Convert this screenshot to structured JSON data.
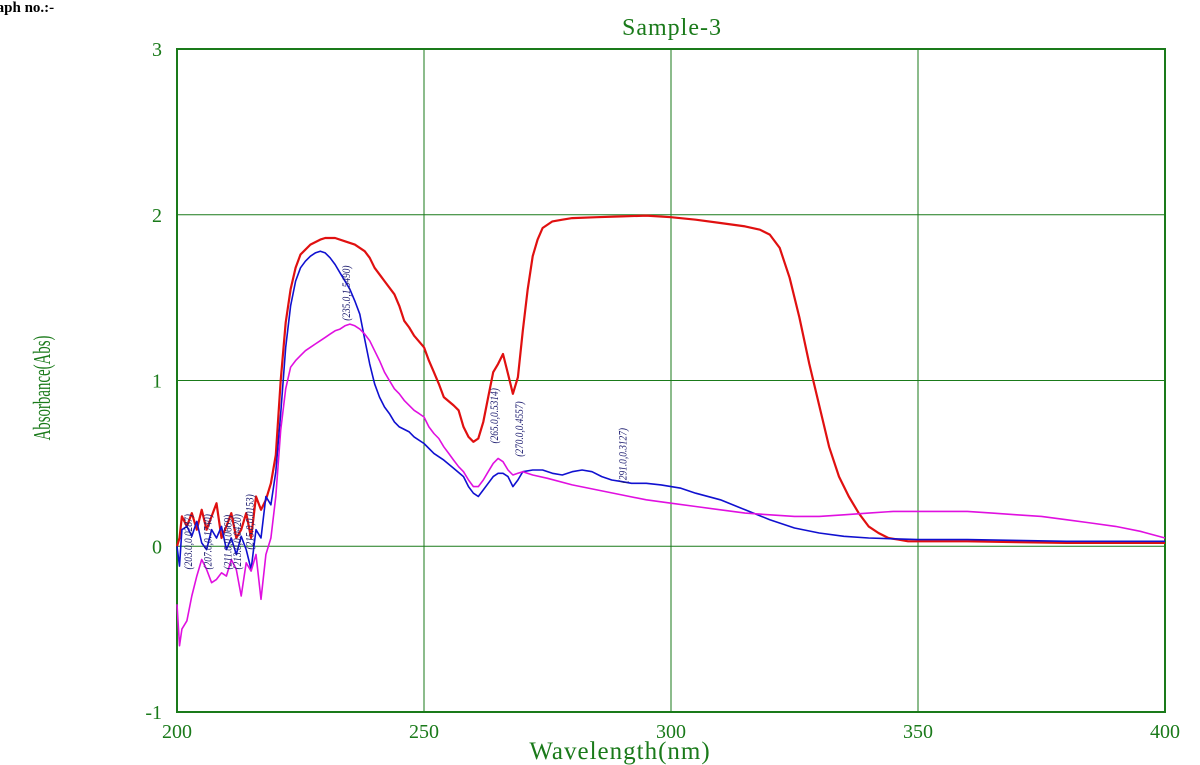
{
  "page": {
    "heading": "raph no.:-"
  },
  "chart_data": {
    "type": "line",
    "title": "Sample-3",
    "xlabel": "Wavelength(nm)",
    "ylabel": "Absorbance(Abs)",
    "xlim": [
      200,
      400
    ],
    "ylim": [
      -1,
      3
    ],
    "xticks": [
      200,
      250,
      300,
      350,
      400
    ],
    "yticks": [
      -1,
      0,
      1,
      2,
      3
    ],
    "xtick_labels": [
      "200",
      "250",
      "300",
      "350",
      "400"
    ],
    "ytick_labels": [
      "-1",
      "0",
      "1",
      "2",
      "3"
    ],
    "grid": true,
    "legend": "none",
    "colors": {
      "frame": "#1a7a1a",
      "grid": "#1a7a1a",
      "annotation": "#1a1a6e"
    },
    "series": [
      {
        "color": "#e01010",
        "points": [
          [
            200,
            0.0
          ],
          [
            200.5,
            0.05
          ],
          [
            201,
            0.18
          ],
          [
            202,
            0.12
          ],
          [
            203,
            0.2
          ],
          [
            204,
            0.1
          ],
          [
            205,
            0.22
          ],
          [
            206,
            0.1
          ],
          [
            207,
            0.18
          ],
          [
            208,
            0.26
          ],
          [
            209,
            0.05
          ],
          [
            210,
            0.12
          ],
          [
            211,
            0.2
          ],
          [
            212,
            0.05
          ],
          [
            213,
            0.1
          ],
          [
            214,
            0.2
          ],
          [
            215,
            0.05
          ],
          [
            216,
            0.3
          ],
          [
            217,
            0.22
          ],
          [
            218,
            0.28
          ],
          [
            219,
            0.38
          ],
          [
            220,
            0.55
          ],
          [
            221,
            1.0
          ],
          [
            222,
            1.35
          ],
          [
            223,
            1.55
          ],
          [
            224,
            1.68
          ],
          [
            225,
            1.76
          ],
          [
            227,
            1.82
          ],
          [
            229,
            1.85
          ],
          [
            230,
            1.86
          ],
          [
            232,
            1.86
          ],
          [
            234,
            1.84
          ],
          [
            236,
            1.82
          ],
          [
            238,
            1.78
          ],
          [
            239,
            1.74
          ],
          [
            240,
            1.68
          ],
          [
            242,
            1.6
          ],
          [
            244,
            1.52
          ],
          [
            245,
            1.45
          ],
          [
            246,
            1.36
          ],
          [
            247,
            1.32
          ],
          [
            248,
            1.27
          ],
          [
            250,
            1.2
          ],
          [
            251,
            1.12
          ],
          [
            252,
            1.05
          ],
          [
            253,
            0.98
          ],
          [
            254,
            0.9
          ],
          [
            256,
            0.85
          ],
          [
            257,
            0.82
          ],
          [
            258,
            0.72
          ],
          [
            259,
            0.66
          ],
          [
            260,
            0.63
          ],
          [
            261,
            0.65
          ],
          [
            262,
            0.75
          ],
          [
            263,
            0.9
          ],
          [
            264,
            1.05
          ],
          [
            265,
            1.1
          ],
          [
            266,
            1.16
          ],
          [
            267,
            1.04
          ],
          [
            268,
            0.92
          ],
          [
            269,
            1.02
          ],
          [
            270,
            1.3
          ],
          [
            271,
            1.55
          ],
          [
            272,
            1.75
          ],
          [
            273,
            1.85
          ],
          [
            274,
            1.92
          ],
          [
            276,
            1.96
          ],
          [
            278,
            1.97
          ],
          [
            280,
            1.98
          ],
          [
            285,
            1.985
          ],
          [
            290,
            1.99
          ],
          [
            295,
            1.995
          ],
          [
            300,
            1.985
          ],
          [
            305,
            1.97
          ],
          [
            310,
            1.95
          ],
          [
            315,
            1.93
          ],
          [
            318,
            1.91
          ],
          [
            320,
            1.88
          ],
          [
            322,
            1.8
          ],
          [
            324,
            1.62
          ],
          [
            326,
            1.38
          ],
          [
            328,
            1.1
          ],
          [
            330,
            0.85
          ],
          [
            332,
            0.6
          ],
          [
            334,
            0.42
          ],
          [
            336,
            0.3
          ],
          [
            338,
            0.2
          ],
          [
            340,
            0.12
          ],
          [
            342,
            0.08
          ],
          [
            344,
            0.05
          ],
          [
            346,
            0.04
          ],
          [
            348,
            0.03
          ],
          [
            350,
            0.03
          ],
          [
            360,
            0.03
          ],
          [
            370,
            0.025
          ],
          [
            380,
            0.02
          ],
          [
            390,
            0.02
          ],
          [
            400,
            0.02
          ]
        ]
      },
      {
        "color": "#1010d0",
        "points": [
          [
            200,
            0.0
          ],
          [
            200.5,
            -0.12
          ],
          [
            201,
            0.1
          ],
          [
            202,
            0.12
          ],
          [
            203,
            0.06
          ],
          [
            204,
            0.15
          ],
          [
            205,
            0.02
          ],
          [
            206,
            -0.02
          ],
          [
            207,
            0.1
          ],
          [
            208,
            0.05
          ],
          [
            209,
            0.12
          ],
          [
            210,
            -0.02
          ],
          [
            211,
            0.05
          ],
          [
            212,
            -0.05
          ],
          [
            213,
            0.06
          ],
          [
            214,
            -0.02
          ],
          [
            215,
            -0.14
          ],
          [
            216,
            0.1
          ],
          [
            217,
            0.05
          ],
          [
            218,
            0.3
          ],
          [
            219,
            0.25
          ],
          [
            220,
            0.45
          ],
          [
            221,
            0.8
          ],
          [
            222,
            1.2
          ],
          [
            223,
            1.45
          ],
          [
            224,
            1.6
          ],
          [
            225,
            1.68
          ],
          [
            226,
            1.72
          ],
          [
            227,
            1.75
          ],
          [
            228,
            1.77
          ],
          [
            229,
            1.78
          ],
          [
            230,
            1.77
          ],
          [
            231,
            1.74
          ],
          [
            232,
            1.7
          ],
          [
            233,
            1.65
          ],
          [
            234,
            1.6
          ],
          [
            235,
            1.55
          ],
          [
            236,
            1.48
          ],
          [
            237,
            1.4
          ],
          [
            238,
            1.25
          ],
          [
            239,
            1.1
          ],
          [
            240,
            0.98
          ],
          [
            241,
            0.9
          ],
          [
            242,
            0.84
          ],
          [
            243,
            0.8
          ],
          [
            244,
            0.75
          ],
          [
            245,
            0.72
          ],
          [
            247,
            0.69
          ],
          [
            248,
            0.66
          ],
          [
            250,
            0.62
          ],
          [
            252,
            0.56
          ],
          [
            254,
            0.52
          ],
          [
            256,
            0.47
          ],
          [
            258,
            0.42
          ],
          [
            259,
            0.36
          ],
          [
            260,
            0.32
          ],
          [
            261,
            0.3
          ],
          [
            262,
            0.34
          ],
          [
            263,
            0.38
          ],
          [
            264,
            0.42
          ],
          [
            265,
            0.44
          ],
          [
            266,
            0.44
          ],
          [
            267,
            0.42
          ],
          [
            268,
            0.36
          ],
          [
            269,
            0.4
          ],
          [
            270,
            0.45
          ],
          [
            272,
            0.46
          ],
          [
            274,
            0.46
          ],
          [
            276,
            0.44
          ],
          [
            278,
            0.43
          ],
          [
            280,
            0.45
          ],
          [
            282,
            0.46
          ],
          [
            284,
            0.45
          ],
          [
            286,
            0.42
          ],
          [
            288,
            0.4
          ],
          [
            290,
            0.39
          ],
          [
            292,
            0.38
          ],
          [
            295,
            0.38
          ],
          [
            298,
            0.37
          ],
          [
            300,
            0.36
          ],
          [
            302,
            0.35
          ],
          [
            305,
            0.32
          ],
          [
            310,
            0.28
          ],
          [
            315,
            0.22
          ],
          [
            320,
            0.16
          ],
          [
            325,
            0.11
          ],
          [
            330,
            0.08
          ],
          [
            335,
            0.06
          ],
          [
            340,
            0.05
          ],
          [
            345,
            0.045
          ],
          [
            350,
            0.04
          ],
          [
            360,
            0.04
          ],
          [
            370,
            0.035
          ],
          [
            380,
            0.03
          ],
          [
            390,
            0.03
          ],
          [
            400,
            0.03
          ]
        ]
      },
      {
        "color": "#e010e0",
        "points": [
          [
            200,
            -0.35
          ],
          [
            200.5,
            -0.6
          ],
          [
            201,
            -0.5
          ],
          [
            202,
            -0.45
          ],
          [
            203,
            -0.3
          ],
          [
            204,
            -0.18
          ],
          [
            205,
            -0.08
          ],
          [
            206,
            -0.14
          ],
          [
            207,
            -0.22
          ],
          [
            208,
            -0.2
          ],
          [
            209,
            -0.16
          ],
          [
            210,
            -0.18
          ],
          [
            211,
            -0.08
          ],
          [
            212,
            -0.14
          ],
          [
            213,
            -0.3
          ],
          [
            214,
            -0.1
          ],
          [
            215,
            -0.15
          ],
          [
            216,
            -0.05
          ],
          [
            217,
            -0.32
          ],
          [
            218,
            -0.05
          ],
          [
            219,
            0.05
          ],
          [
            220,
            0.3
          ],
          [
            221,
            0.7
          ],
          [
            222,
            0.95
          ],
          [
            223,
            1.08
          ],
          [
            224,
            1.12
          ],
          [
            225,
            1.15
          ],
          [
            226,
            1.18
          ],
          [
            227,
            1.2
          ],
          [
            228,
            1.22
          ],
          [
            229,
            1.24
          ],
          [
            230,
            1.26
          ],
          [
            231,
            1.28
          ],
          [
            232,
            1.3
          ],
          [
            233,
            1.31
          ],
          [
            234,
            1.33
          ],
          [
            235,
            1.34
          ],
          [
            236,
            1.33
          ],
          [
            237,
            1.31
          ],
          [
            238,
            1.28
          ],
          [
            239,
            1.24
          ],
          [
            240,
            1.18
          ],
          [
            241,
            1.12
          ],
          [
            242,
            1.05
          ],
          [
            243,
            1.0
          ],
          [
            244,
            0.95
          ],
          [
            245,
            0.92
          ],
          [
            246,
            0.88
          ],
          [
            247,
            0.85
          ],
          [
            248,
            0.82
          ],
          [
            249,
            0.8
          ],
          [
            250,
            0.78
          ],
          [
            251,
            0.72
          ],
          [
            252,
            0.68
          ],
          [
            253,
            0.65
          ],
          [
            254,
            0.6
          ],
          [
            255,
            0.56
          ],
          [
            256,
            0.52
          ],
          [
            257,
            0.48
          ],
          [
            258,
            0.45
          ],
          [
            259,
            0.4
          ],
          [
            260,
            0.36
          ],
          [
            261,
            0.36
          ],
          [
            262,
            0.4
          ],
          [
            263,
            0.45
          ],
          [
            264,
            0.5
          ],
          [
            265,
            0.53
          ],
          [
            266,
            0.51
          ],
          [
            267,
            0.46
          ],
          [
            268,
            0.43
          ],
          [
            269,
            0.44
          ],
          [
            270,
            0.45
          ],
          [
            272,
            0.43
          ],
          [
            275,
            0.41
          ],
          [
            280,
            0.37
          ],
          [
            285,
            0.34
          ],
          [
            290,
            0.31
          ],
          [
            295,
            0.28
          ],
          [
            300,
            0.26
          ],
          [
            305,
            0.24
          ],
          [
            310,
            0.22
          ],
          [
            315,
            0.2
          ],
          [
            320,
            0.19
          ],
          [
            325,
            0.18
          ],
          [
            330,
            0.18
          ],
          [
            335,
            0.19
          ],
          [
            340,
            0.2
          ],
          [
            345,
            0.21
          ],
          [
            350,
            0.21
          ],
          [
            355,
            0.21
          ],
          [
            360,
            0.21
          ],
          [
            365,
            0.2
          ],
          [
            370,
            0.19
          ],
          [
            375,
            0.18
          ],
          [
            380,
            0.16
          ],
          [
            385,
            0.14
          ],
          [
            390,
            0.12
          ],
          [
            395,
            0.09
          ],
          [
            400,
            0.05
          ]
        ]
      }
    ],
    "annotations": [
      {
        "text": "(203.0,0.0287)",
        "x": 203.0,
        "y": -0.14
      },
      {
        "text": "(207.0,0.1740)",
        "x": 207.0,
        "y": -0.14
      },
      {
        "text": "(211.0,0.0669)",
        "x": 211.0,
        "y": -0.14
      },
      {
        "text": "(213.0,0.0420)",
        "x": 213.0,
        "y": -0.14
      },
      {
        "text": "(215.0,0.0153)",
        "x": 215.5,
        "y": -0.02
      },
      {
        "text": "(235.0,1.5490)",
        "x": 235.0,
        "y": 1.36
      },
      {
        "text": "(265.0,0.5314)",
        "x": 265.0,
        "y": 0.62
      },
      {
        "text": "(270.0,0.4557)",
        "x": 270.0,
        "y": 0.54
      },
      {
        "text": "(291.0,0.3127)",
        "x": 291.0,
        "y": 0.38
      }
    ]
  }
}
